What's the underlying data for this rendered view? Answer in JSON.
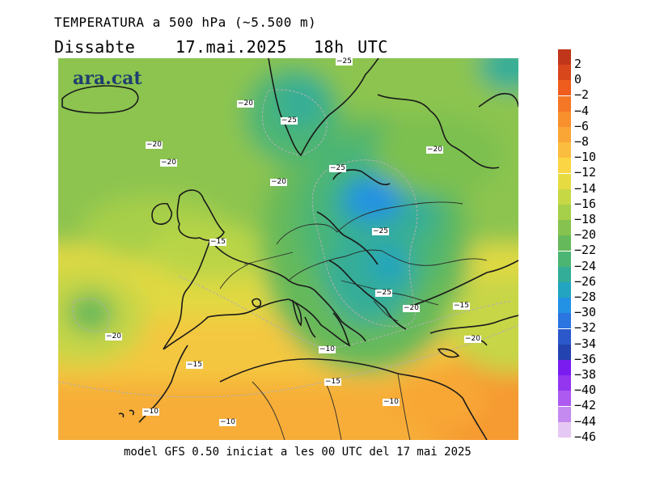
{
  "title": "TEMPERATURA a 500 hPa (~5.500 m)",
  "subtitle": "Dissabte   17.mai.2025  18h UTC",
  "brand": "ara.cat",
  "footer": "model GFS 0.50 iniciat a les 00 UTC del 17 mai 2025",
  "legend": [
    {
      "label": "2",
      "color": "#c0361a"
    },
    {
      "label": "0",
      "color": "#d8461c"
    },
    {
      "label": "−2",
      "color": "#ee5d1e"
    },
    {
      "label": "−4",
      "color": "#f47726"
    },
    {
      "label": "−6",
      "color": "#f8902e"
    },
    {
      "label": "−8",
      "color": "#f9a637"
    },
    {
      "label": "−10",
      "color": "#fbbd3f"
    },
    {
      "label": "−12",
      "color": "#fcd544"
    },
    {
      "label": "−14",
      "color": "#e6dc42"
    },
    {
      "label": "−16",
      "color": "#c7d845"
    },
    {
      "label": "−18",
      "color": "#a6cf4a"
    },
    {
      "label": "−20",
      "color": "#86c24f"
    },
    {
      "label": "−22",
      "color": "#66b95a"
    },
    {
      "label": "−24",
      "color": "#4cb574"
    },
    {
      "label": "−26",
      "color": "#34ad98"
    },
    {
      "label": "−28",
      "color": "#23a4c0"
    },
    {
      "label": "−30",
      "color": "#2391e4"
    },
    {
      "label": "−32",
      "color": "#2a75e0"
    },
    {
      "label": "−34",
      "color": "#2b59cc"
    },
    {
      "label": "−36",
      "color": "#2443b0"
    },
    {
      "label": "−38",
      "color": "#7a1cf0"
    },
    {
      "label": "−40",
      "color": "#9436f0"
    },
    {
      "label": "−42",
      "color": "#ac5af0"
    },
    {
      "label": "−44",
      "color": "#c48af0"
    },
    {
      "label": "−46",
      "color": "#e6c8f4"
    }
  ],
  "contour_labels": [
    "−25",
    "−20",
    "−25",
    "−20",
    "−20",
    "−20",
    "−25",
    "−20",
    "−20",
    "−25",
    "−15",
    "−25",
    "−20",
    "−15",
    "−20",
    "−10",
    "−15",
    "−15",
    "−10",
    "−10",
    "−10",
    "−10"
  ]
}
